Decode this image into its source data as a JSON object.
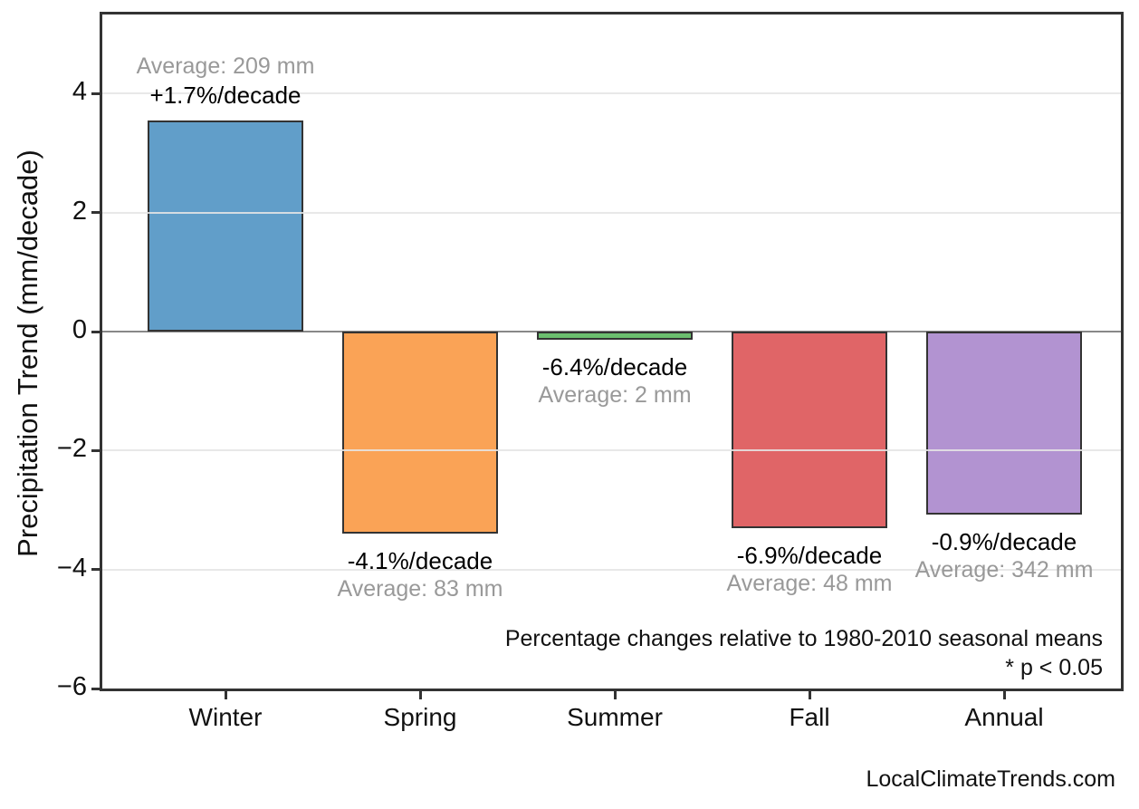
{
  "page": {
    "watermark": "LocalClimateTrends.com"
  },
  "chart_data": {
    "type": "bar",
    "title": "",
    "ylabel": "Precipitation Trend (mm/decade)",
    "xlabel": "",
    "categories": [
      "Winter",
      "Spring",
      "Summer",
      "Fall",
      "Annual"
    ],
    "values": [
      3.55,
      -3.4,
      -0.13,
      -3.31,
      -3.08
    ],
    "pct_labels": [
      "+1.7%/decade",
      "-4.1%/decade",
      "-6.4%/decade",
      "-6.9%/decade",
      "-0.9%/decade"
    ],
    "avg_labels": [
      "Average: 209 mm",
      "Average: 83 mm",
      "Average: 2 mm",
      "Average: 48 mm",
      "Average: 342 mm"
    ],
    "average_values_mm": [
      209,
      83,
      2,
      48,
      342
    ],
    "pct_per_decade": [
      1.7,
      -4.1,
      -6.4,
      -6.9,
      -0.9
    ],
    "bar_colors": [
      "#619EC9",
      "#FAA356",
      "#6BBE6E",
      "#E06567",
      "#B293D1"
    ],
    "bar_edge_color": "#333333",
    "pct_label_color": "#000000",
    "avg_label_color": "#999999",
    "yticks": [
      4,
      2,
      0,
      -2,
      -4,
      -6
    ],
    "ytick_labels": [
      "4",
      "2",
      "0",
      "−2",
      "−4",
      "−6"
    ],
    "ylim": [
      -6.0,
      5.33
    ],
    "grid": "horizontal",
    "gridline_color": "rgba(229,229,229,0.88)",
    "zero_line_color": "#888888",
    "legend": "none",
    "notes": [
      "Percentage changes relative to 1980-2010 seasonal means",
      "* p < 0.05"
    ],
    "watermark": "LocalClimateTrends.com"
  }
}
